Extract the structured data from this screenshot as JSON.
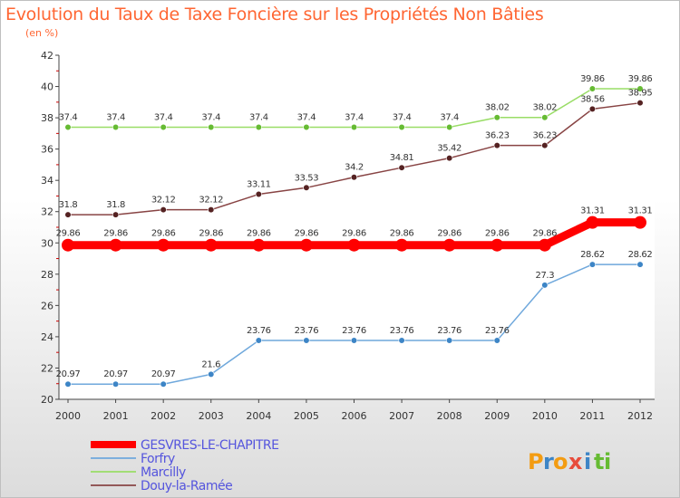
{
  "chart_data": {
    "type": "line",
    "title": "Evolution du Taux de Taxe Foncière sur les Propriétés Non Bâties",
    "ylabel": "(en %)",
    "xlabel": "",
    "ylim": [
      20,
      42
    ],
    "yticks": [
      20,
      22,
      24,
      26,
      28,
      30,
      32,
      34,
      36,
      38,
      40,
      42
    ],
    "categories": [
      "2000",
      "2001",
      "2002",
      "2003",
      "2004",
      "2005",
      "2006",
      "2007",
      "2008",
      "2009",
      "2010",
      "2011",
      "2012"
    ],
    "series": [
      {
        "name": "GESVRES-LE-CHAPITRE",
        "color": "#ff0000",
        "marker": "#ff0000",
        "labels": [
          "29.86",
          "29.86",
          "29.86",
          "29.86",
          "29.86",
          "29.86",
          "29.86",
          "29.86",
          "29.86",
          "29.86",
          "29.86",
          "31.31",
          "31.31"
        ],
        "values": [
          29.86,
          29.86,
          29.86,
          29.86,
          29.86,
          29.86,
          29.86,
          29.86,
          29.86,
          29.86,
          29.86,
          31.31,
          31.31
        ]
      },
      {
        "name": "Forfry",
        "color": "#6fa8dc",
        "marker": "#3d85c6",
        "labels": [
          "20.97",
          "20.97",
          "20.97",
          "21.6",
          "23.76",
          "23.76",
          "23.76",
          "23.76",
          "23.76",
          "23.76",
          "27.3",
          "28.62",
          "28.62"
        ],
        "values": [
          20.97,
          20.97,
          20.97,
          21.6,
          23.76,
          23.76,
          23.76,
          23.76,
          23.76,
          23.76,
          27.3,
          28.62,
          28.62
        ]
      },
      {
        "name": "Marcilly",
        "color": "#99dd66",
        "marker": "#66bb33",
        "labels": [
          "37.4",
          "37.4",
          "37.4",
          "37.4",
          "37.4",
          "37.4",
          "37.4",
          "37.4",
          "37.4",
          "38.02",
          "38.02",
          "39.86",
          "39.86"
        ],
        "values": [
          37.4,
          37.4,
          37.4,
          37.4,
          37.4,
          37.4,
          37.4,
          37.4,
          37.4,
          38.02,
          38.02,
          39.86,
          39.86
        ]
      },
      {
        "name": "Douy-la-Ramée",
        "color": "#884444",
        "marker": "#552222",
        "labels": [
          "31.8",
          "31.8",
          "32.12",
          "32.12",
          "33.11",
          "33.53",
          "34.2",
          "34.81",
          "35.42",
          "36.23",
          "36.23",
          "38.56",
          "38.95"
        ],
        "values": [
          31.8,
          31.8,
          32.12,
          32.12,
          33.11,
          33.53,
          34.2,
          34.81,
          35.42,
          36.23,
          36.23,
          38.56,
          38.95
        ]
      }
    ],
    "legend": "bottom-left",
    "grid": false
  },
  "logo": {
    "text": "Proxiti",
    "letters": [
      "P",
      "r",
      "o",
      "x",
      "i",
      "t",
      "i"
    ],
    "colors": [
      "#f39c12",
      "#3d85c6",
      "#f39c12",
      "#e74c3c",
      "#3d85c6",
      "#66bb33",
      "#66bb33"
    ]
  }
}
